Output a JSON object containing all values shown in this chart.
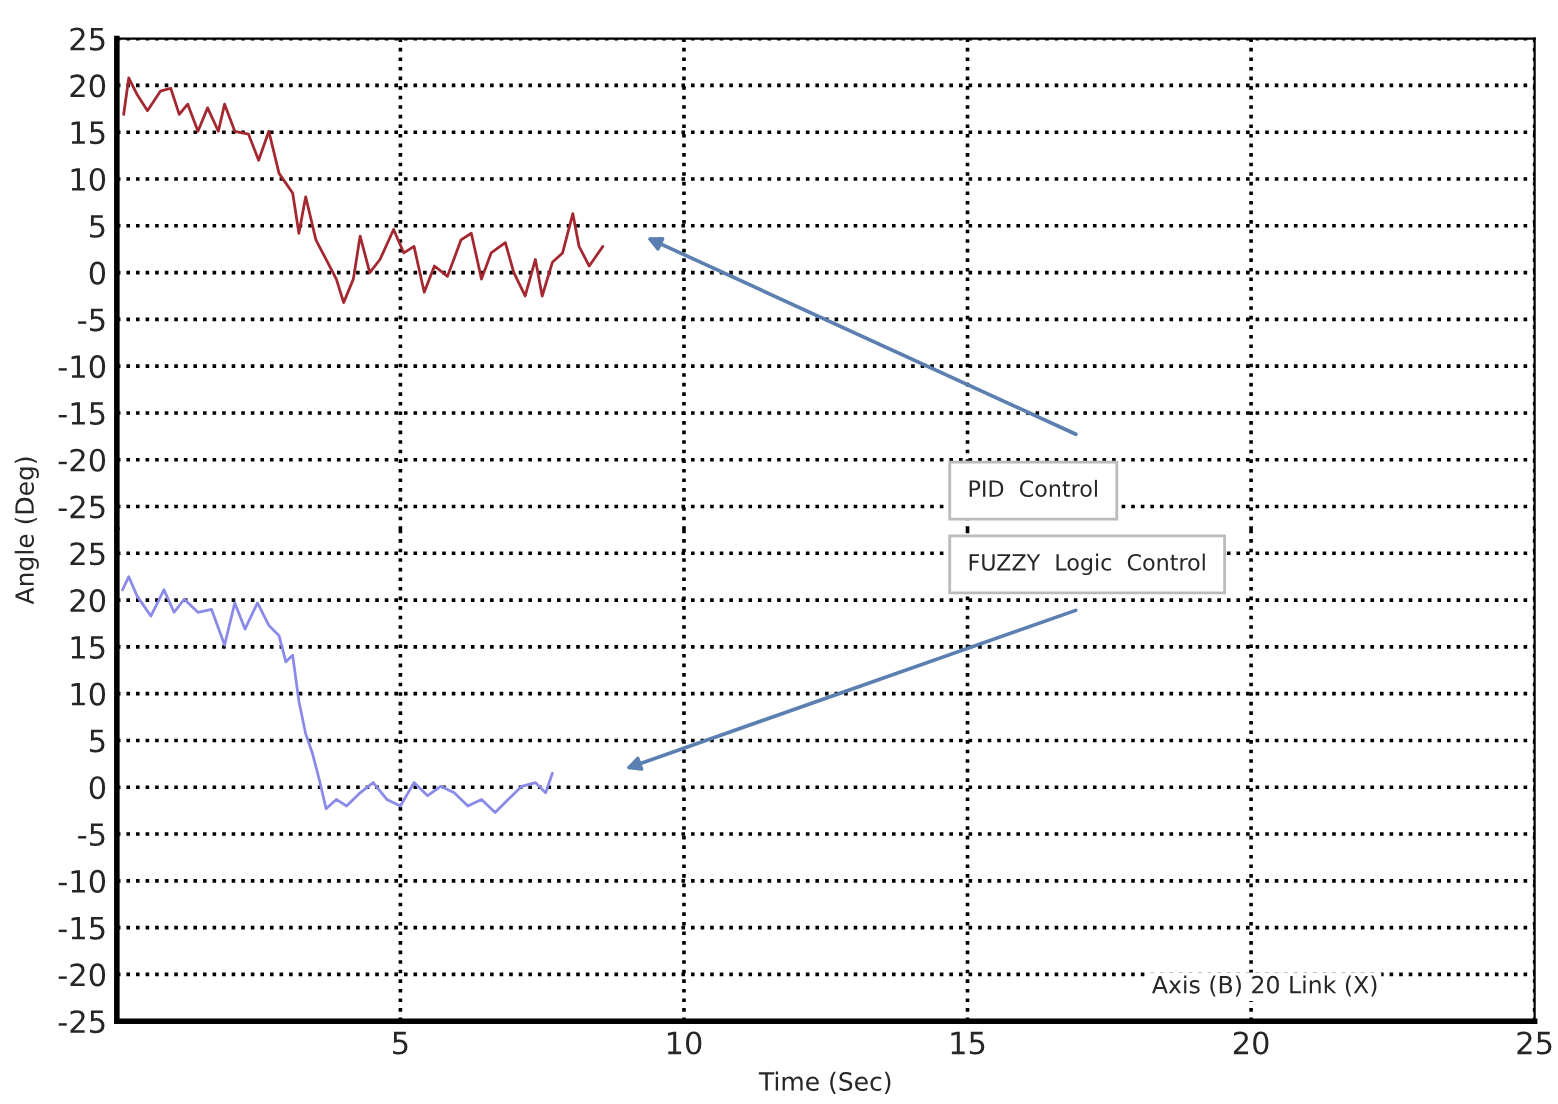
{
  "chart_data": [
    {
      "type": "line",
      "xlim": [
        0,
        25
      ],
      "xticks": [
        5,
        10,
        15,
        20,
        25
      ],
      "ylim": [
        -27.5,
        25
      ],
      "yticks": [
        25,
        20,
        15,
        10,
        5,
        0,
        -5,
        -10,
        -15,
        -20,
        -25
      ],
      "tick_labels": "y",
      "grid": true,
      "line_style": "solid",
      "marker": "none",
      "annotations": [
        "PID  Control"
      ],
      "series": [
        {
          "color": "#a3282f",
          "x": [
            0.12,
            0.21,
            0.36,
            0.54,
            0.77,
            0.95,
            1.1,
            1.25,
            1.43,
            1.6,
            1.79,
            1.9,
            2.08,
            2.32,
            2.5,
            2.68,
            2.86,
            3.1,
            3.21,
            3.33,
            3.51,
            3.69,
            3.87,
            4.0,
            4.17,
            4.29,
            4.46,
            4.64,
            4.88,
            5.06,
            5.24,
            5.42,
            5.6,
            5.83,
            6.07,
            6.25,
            6.43,
            6.6,
            6.85,
            7.0,
            7.2,
            7.38,
            7.5,
            7.68,
            7.86,
            8.04,
            8.15,
            8.33,
            8.57
          ],
          "values": [
            16.9,
            20.8,
            19,
            17.3,
            19.4,
            19.7,
            16.9,
            18,
            15.1,
            17.6,
            15.1,
            18,
            15.1,
            14.8,
            12,
            15.1,
            10.6,
            8.5,
            4.2,
            8.1,
            3.5,
            1.4,
            -0.7,
            -3.2,
            -0.7,
            3.9,
            0,
            1.4,
            4.6,
            2.1,
            2.8,
            -2.1,
            0.7,
            -0.4,
            3.5,
            4.2,
            -0.7,
            2.1,
            3.2,
            0,
            -2.5,
            1.4,
            -2.5,
            1.1,
            2.1,
            6.3,
            2.8,
            0.7,
            2.8
          ]
        }
      ]
    },
    {
      "type": "line",
      "xlim": [
        0,
        25
      ],
      "xticks": [
        5,
        10,
        15,
        20,
        25
      ],
      "ylim": [
        -25,
        27.5
      ],
      "yticks": [
        25,
        20,
        15,
        10,
        5,
        0,
        -5,
        -10,
        -15,
        -20,
        -25
      ],
      "grid": true,
      "line_style": "solid",
      "marker": "none",
      "xlabel": "Time (Sec)",
      "ylabel": "Angle (Deg)",
      "annotations": [
        "FUZZY  Logic  Control",
        "Axis (B) 20 Link (X)"
      ],
      "series": [
        {
          "color": "#8a8ae8",
          "x": [
            0.1,
            0.21,
            0.36,
            0.6,
            0.83,
            1.01,
            1.19,
            1.43,
            1.67,
            1.9,
            2.08,
            2.26,
            2.48,
            2.68,
            2.86,
            2.98,
            3.1,
            3.21,
            3.33,
            3.45,
            3.57,
            3.69,
            3.87,
            4.05,
            4.29,
            4.52,
            4.76,
            5.0,
            5.24,
            5.48,
            5.71,
            5.95,
            6.19,
            6.43,
            6.67,
            6.9,
            7.14,
            7.38,
            7.56,
            7.68
          ],
          "values": [
            21.1,
            22.5,
            20.4,
            18.3,
            21.1,
            18.7,
            20.1,
            18.7,
            19,
            15.2,
            19.7,
            16.9,
            19.7,
            17.3,
            16.2,
            13.4,
            14.1,
            9.2,
            5.7,
            3.6,
            0.8,
            -2.3,
            -1.3,
            -2,
            -0.6,
            0.5,
            -1.3,
            -2,
            0.5,
            -0.9,
            0.1,
            -0.6,
            -2,
            -1.3,
            -2.7,
            -1.3,
            0.1,
            0.5,
            -0.6,
            1.5
          ]
        }
      ]
    }
  ]
}
